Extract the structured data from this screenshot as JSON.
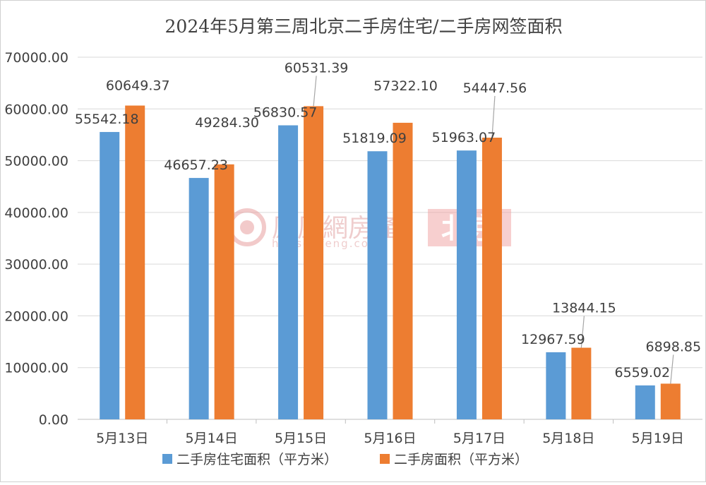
{
  "chart_data": {
    "type": "bar",
    "title": "2024年5月第三周北京二手房住宅/二手房网签面积",
    "categories": [
      "5月13日",
      "5月14日",
      "5月15日",
      "5月16日",
      "5月17日",
      "5月18日",
      "5月19日"
    ],
    "series": [
      {
        "name": "二手房住宅面积（平方米）",
        "color": "#5b9bd5",
        "values": [
          55542.18,
          46657.23,
          56830.57,
          51819.09,
          51963.07,
          12967.59,
          6559.02
        ],
        "labels": [
          "55542.18",
          "46657.23",
          "56830.57",
          "51819.09",
          "51963.07",
          "12967.59",
          "6559.02"
        ]
      },
      {
        "name": "二手房面积（平方米）",
        "color": "#ed7d31",
        "values": [
          60649.37,
          49284.3,
          60531.39,
          57322.1,
          54447.56,
          13844.15,
          6898.85
        ],
        "labels": [
          "60649.37",
          "49284.30",
          "60531.39",
          "57322.10",
          "54447.56",
          "13844.15",
          "6898.85"
        ]
      }
    ],
    "y_ticks": [
      "0.00",
      "10000.00",
      "20000.00",
      "30000.00",
      "40000.00",
      "50000.00",
      "60000.00",
      "70000.00"
    ],
    "ylim": [
      0,
      70000
    ],
    "grid": true,
    "legend": "bottom"
  },
  "watermark": {
    "brand_text": "鳳凰網房產",
    "url_text": "house.ifeng.com",
    "city_text": "北京"
  }
}
